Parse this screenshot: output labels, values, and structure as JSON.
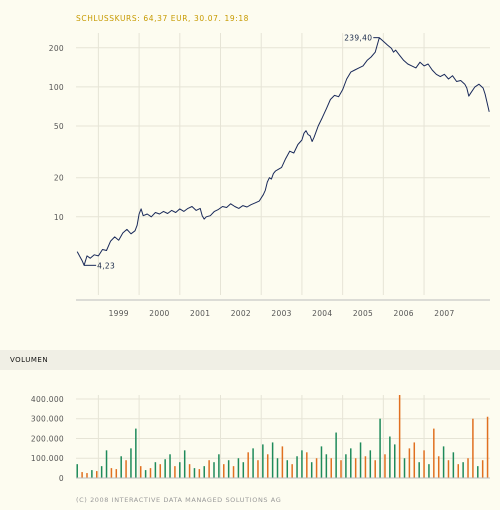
{
  "header": {
    "title": "SCHLUSSKURS: 64,37 EUR, 30.07. 19:18"
  },
  "volume_section": {
    "label": "VOLUMEN"
  },
  "footer": {
    "copyright": "(C) 2008 INTERACTIVE DATA MANAGED SOLUTIONS AG"
  },
  "colors": {
    "price_line": "#1a2a5a",
    "vol_up": "#1e8a5a",
    "vol_down": "#e07020",
    "grid": "#e6e4d6",
    "title": "#c79a00"
  },
  "chart_data": [
    {
      "type": "line",
      "title": "SCHLUSSKURS: 64,37 EUR, 30.07. 19:18",
      "yscale": "log",
      "ylim": [
        2.5,
        260
      ],
      "xlim": [
        1998.45,
        2008.62
      ],
      "grid": true,
      "y_ticks": [
        {
          "value": 10,
          "label": "10"
        },
        {
          "value": 20,
          "label": "20"
        },
        {
          "value": 50,
          "label": "50"
        },
        {
          "value": 100,
          "label": "100"
        },
        {
          "value": 200,
          "label": "200"
        }
      ],
      "x_ticks": [
        {
          "value": 1999,
          "label": "1999"
        },
        {
          "value": 2000,
          "label": "2000"
        },
        {
          "value": 2001,
          "label": "2001"
        },
        {
          "value": 2002,
          "label": "2002"
        },
        {
          "value": 2003,
          "label": "2003"
        },
        {
          "value": 2004,
          "label": "2004"
        },
        {
          "value": 2005,
          "label": "2005"
        },
        {
          "value": 2006,
          "label": "2006"
        },
        {
          "value": 2007,
          "label": "2007"
        }
      ],
      "annotations": [
        {
          "x": 1998.65,
          "y": 4.23,
          "label": "4,23",
          "position": "right"
        },
        {
          "x": 2005.9,
          "y": 239.4,
          "label": "239,40",
          "position": "left"
        }
      ],
      "series": [
        {
          "points": [
            [
              1998.48,
              5.4
            ],
            [
              1998.55,
              4.9
            ],
            [
              1998.6,
              4.6
            ],
            [
              1998.65,
              4.23
            ],
            [
              1998.72,
              5.0
            ],
            [
              1998.8,
              4.8
            ],
            [
              1998.9,
              5.1
            ],
            [
              1999.0,
              5.0
            ],
            [
              1999.1,
              5.6
            ],
            [
              1999.2,
              5.5
            ],
            [
              1999.3,
              6.5
            ],
            [
              1999.4,
              7.0
            ],
            [
              1999.5,
              6.6
            ],
            [
              1999.6,
              7.5
            ],
            [
              1999.7,
              8.0
            ],
            [
              1999.8,
              7.4
            ],
            [
              1999.9,
              7.8
            ],
            [
              1999.95,
              8.6
            ],
            [
              2000.0,
              10.5
            ],
            [
              2000.05,
              11.5
            ],
            [
              2000.1,
              10.2
            ],
            [
              2000.2,
              10.5
            ],
            [
              2000.3,
              10.0
            ],
            [
              2000.4,
              10.8
            ],
            [
              2000.5,
              10.5
            ],
            [
              2000.6,
              11.0
            ],
            [
              2000.7,
              10.6
            ],
            [
              2000.8,
              11.2
            ],
            [
              2000.9,
              10.8
            ],
            [
              2001.0,
              11.5
            ],
            [
              2001.1,
              11.0
            ],
            [
              2001.2,
              11.6
            ],
            [
              2001.3,
              12.0
            ],
            [
              2001.4,
              11.2
            ],
            [
              2001.5,
              11.6
            ],
            [
              2001.55,
              10.2
            ],
            [
              2001.6,
              9.6
            ],
            [
              2001.65,
              10.0
            ],
            [
              2001.75,
              10.2
            ],
            [
              2001.85,
              11.0
            ],
            [
              2001.95,
              11.4
            ],
            [
              2002.05,
              12.0
            ],
            [
              2002.15,
              11.8
            ],
            [
              2002.25,
              12.6
            ],
            [
              2002.35,
              12.0
            ],
            [
              2002.45,
              11.6
            ],
            [
              2002.55,
              12.2
            ],
            [
              2002.65,
              11.9
            ],
            [
              2002.75,
              12.4
            ],
            [
              2002.85,
              12.8
            ],
            [
              2002.95,
              13.2
            ],
            [
              2003.05,
              14.8
            ],
            [
              2003.1,
              16.0
            ],
            [
              2003.15,
              18.5
            ],
            [
              2003.2,
              20.0
            ],
            [
              2003.25,
              19.5
            ],
            [
              2003.3,
              21.5
            ],
            [
              2003.35,
              22.5
            ],
            [
              2003.4,
              23.0
            ],
            [
              2003.5,
              24.0
            ],
            [
              2003.6,
              28.0
            ],
            [
              2003.7,
              32.0
            ],
            [
              2003.8,
              31.0
            ],
            [
              2003.9,
              36.0
            ],
            [
              2004.0,
              39.0
            ],
            [
              2004.05,
              44.0
            ],
            [
              2004.1,
              46.0
            ],
            [
              2004.15,
              43.0
            ],
            [
              2004.2,
              42.0
            ],
            [
              2004.25,
              38.0
            ],
            [
              2004.3,
              41.0
            ],
            [
              2004.4,
              50.0
            ],
            [
              2004.5,
              58.0
            ],
            [
              2004.6,
              68.0
            ],
            [
              2004.7,
              80.0
            ],
            [
              2004.8,
              86.0
            ],
            [
              2004.9,
              84.0
            ],
            [
              2005.0,
              95.0
            ],
            [
              2005.1,
              115.0
            ],
            [
              2005.2,
              130.0
            ],
            [
              2005.3,
              135.0
            ],
            [
              2005.4,
              140.0
            ],
            [
              2005.5,
              145.0
            ],
            [
              2005.6,
              160.0
            ],
            [
              2005.7,
              170.0
            ],
            [
              2005.8,
              185.0
            ],
            [
              2005.9,
              239.4
            ],
            [
              2006.0,
              225.0
            ],
            [
              2006.1,
              210.0
            ],
            [
              2006.2,
              198.0
            ],
            [
              2006.25,
              185.0
            ],
            [
              2006.3,
              192.0
            ],
            [
              2006.4,
              175.0
            ],
            [
              2006.5,
              160.0
            ],
            [
              2006.6,
              150.0
            ],
            [
              2006.7,
              145.0
            ],
            [
              2006.8,
              140.0
            ],
            [
              2006.9,
              155.0
            ],
            [
              2007.0,
              145.0
            ],
            [
              2007.1,
              150.0
            ],
            [
              2007.2,
              135.0
            ],
            [
              2007.3,
              125.0
            ],
            [
              2007.4,
              120.0
            ],
            [
              2007.5,
              125.0
            ],
            [
              2007.6,
              115.0
            ],
            [
              2007.7,
              122.0
            ],
            [
              2007.8,
              110.0
            ],
            [
              2007.9,
              112.0
            ],
            [
              2008.0,
              105.0
            ],
            [
              2008.05,
              98.0
            ],
            [
              2008.1,
              85.0
            ],
            [
              2008.15,
              90.0
            ],
            [
              2008.25,
              100.0
            ],
            [
              2008.35,
              105.0
            ],
            [
              2008.45,
              98.0
            ],
            [
              2008.5,
              88.0
            ],
            [
              2008.55,
              75.0
            ],
            [
              2008.6,
              64.37
            ]
          ]
        }
      ]
    },
    {
      "type": "bar",
      "title": "VOLUMEN",
      "ylim": [
        0,
        420000
      ],
      "grid": true,
      "y_ticks": [
        {
          "value": 0,
          "label": "0"
        },
        {
          "value": 100000,
          "label": "100.000"
        },
        {
          "value": 200000,
          "label": "200.000"
        },
        {
          "value": 300000,
          "label": "300.000"
        },
        {
          "value": 400000,
          "label": "400.000"
        }
      ],
      "series_colors": {
        "up": "#1e8a5a",
        "down": "#e07020"
      },
      "x": [
        1998.48,
        1998.6,
        1998.72,
        1998.84,
        1998.96,
        1999.08,
        1999.2,
        1999.32,
        1999.44,
        1999.56,
        1999.68,
        1999.8,
        1999.92,
        2000.04,
        2000.16,
        2000.28,
        2000.4,
        2000.52,
        2000.64,
        2000.76,
        2000.88,
        2001.0,
        2001.12,
        2001.24,
        2001.36,
        2001.48,
        2001.6,
        2001.72,
        2001.84,
        2001.96,
        2002.08,
        2002.2,
        2002.32,
        2002.44,
        2002.56,
        2002.68,
        2002.8,
        2002.92,
        2003.04,
        2003.16,
        2003.28,
        2003.4,
        2003.52,
        2003.64,
        2003.76,
        2003.88,
        2004.0,
        2004.12,
        2004.24,
        2004.36,
        2004.48,
        2004.6,
        2004.72,
        2004.84,
        2004.96,
        2005.08,
        2005.2,
        2005.32,
        2005.44,
        2005.56,
        2005.68,
        2005.8,
        2005.92,
        2006.04,
        2006.16,
        2006.28,
        2006.4,
        2006.52,
        2006.64,
        2006.76,
        2006.88,
        2007.0,
        2007.12,
        2007.24,
        2007.36,
        2007.48,
        2007.6,
        2007.72,
        2007.84,
        2007.96,
        2008.08,
        2008.2,
        2008.32,
        2008.44,
        2008.56
      ],
      "values": [
        70000,
        30000,
        25000,
        40000,
        35000,
        60000,
        140000,
        50000,
        45000,
        110000,
        90000,
        150000,
        250000,
        60000,
        40000,
        50000,
        80000,
        70000,
        95000,
        120000,
        60000,
        80000,
        140000,
        70000,
        50000,
        45000,
        60000,
        90000,
        80000,
        120000,
        70000,
        90000,
        60000,
        100000,
        80000,
        130000,
        150000,
        90000,
        170000,
        120000,
        180000,
        100000,
        160000,
        90000,
        70000,
        110000,
        140000,
        130000,
        80000,
        100000,
        160000,
        120000,
        100000,
        230000,
        90000,
        120000,
        150000,
        100000,
        180000,
        110000,
        140000,
        90000,
        300000,
        120000,
        210000,
        170000,
        420000,
        100000,
        150000,
        180000,
        80000,
        140000,
        70000,
        250000,
        110000,
        160000,
        90000,
        130000,
        70000,
        80000,
        100000,
        300000,
        60000,
        90000,
        310000
      ],
      "directions": [
        "up",
        "down",
        "down",
        "up",
        "down",
        "up",
        "up",
        "down",
        "down",
        "up",
        "down",
        "up",
        "up",
        "down",
        "up",
        "down",
        "up",
        "down",
        "up",
        "up",
        "down",
        "up",
        "up",
        "down",
        "up",
        "down",
        "up",
        "down",
        "up",
        "up",
        "down",
        "up",
        "down",
        "up",
        "up",
        "down",
        "up",
        "down",
        "up",
        "down",
        "up",
        "up",
        "down",
        "up",
        "down",
        "up",
        "up",
        "down",
        "up",
        "down",
        "up",
        "up",
        "down",
        "up",
        "down",
        "up",
        "up",
        "down",
        "up",
        "down",
        "up",
        "down",
        "up",
        "down",
        "up",
        "up",
        "down",
        "up",
        "down",
        "down",
        "up",
        "down",
        "up",
        "down",
        "down",
        "up",
        "down",
        "up",
        "down",
        "up",
        "down",
        "down",
        "up",
        "down",
        "down"
      ]
    }
  ]
}
